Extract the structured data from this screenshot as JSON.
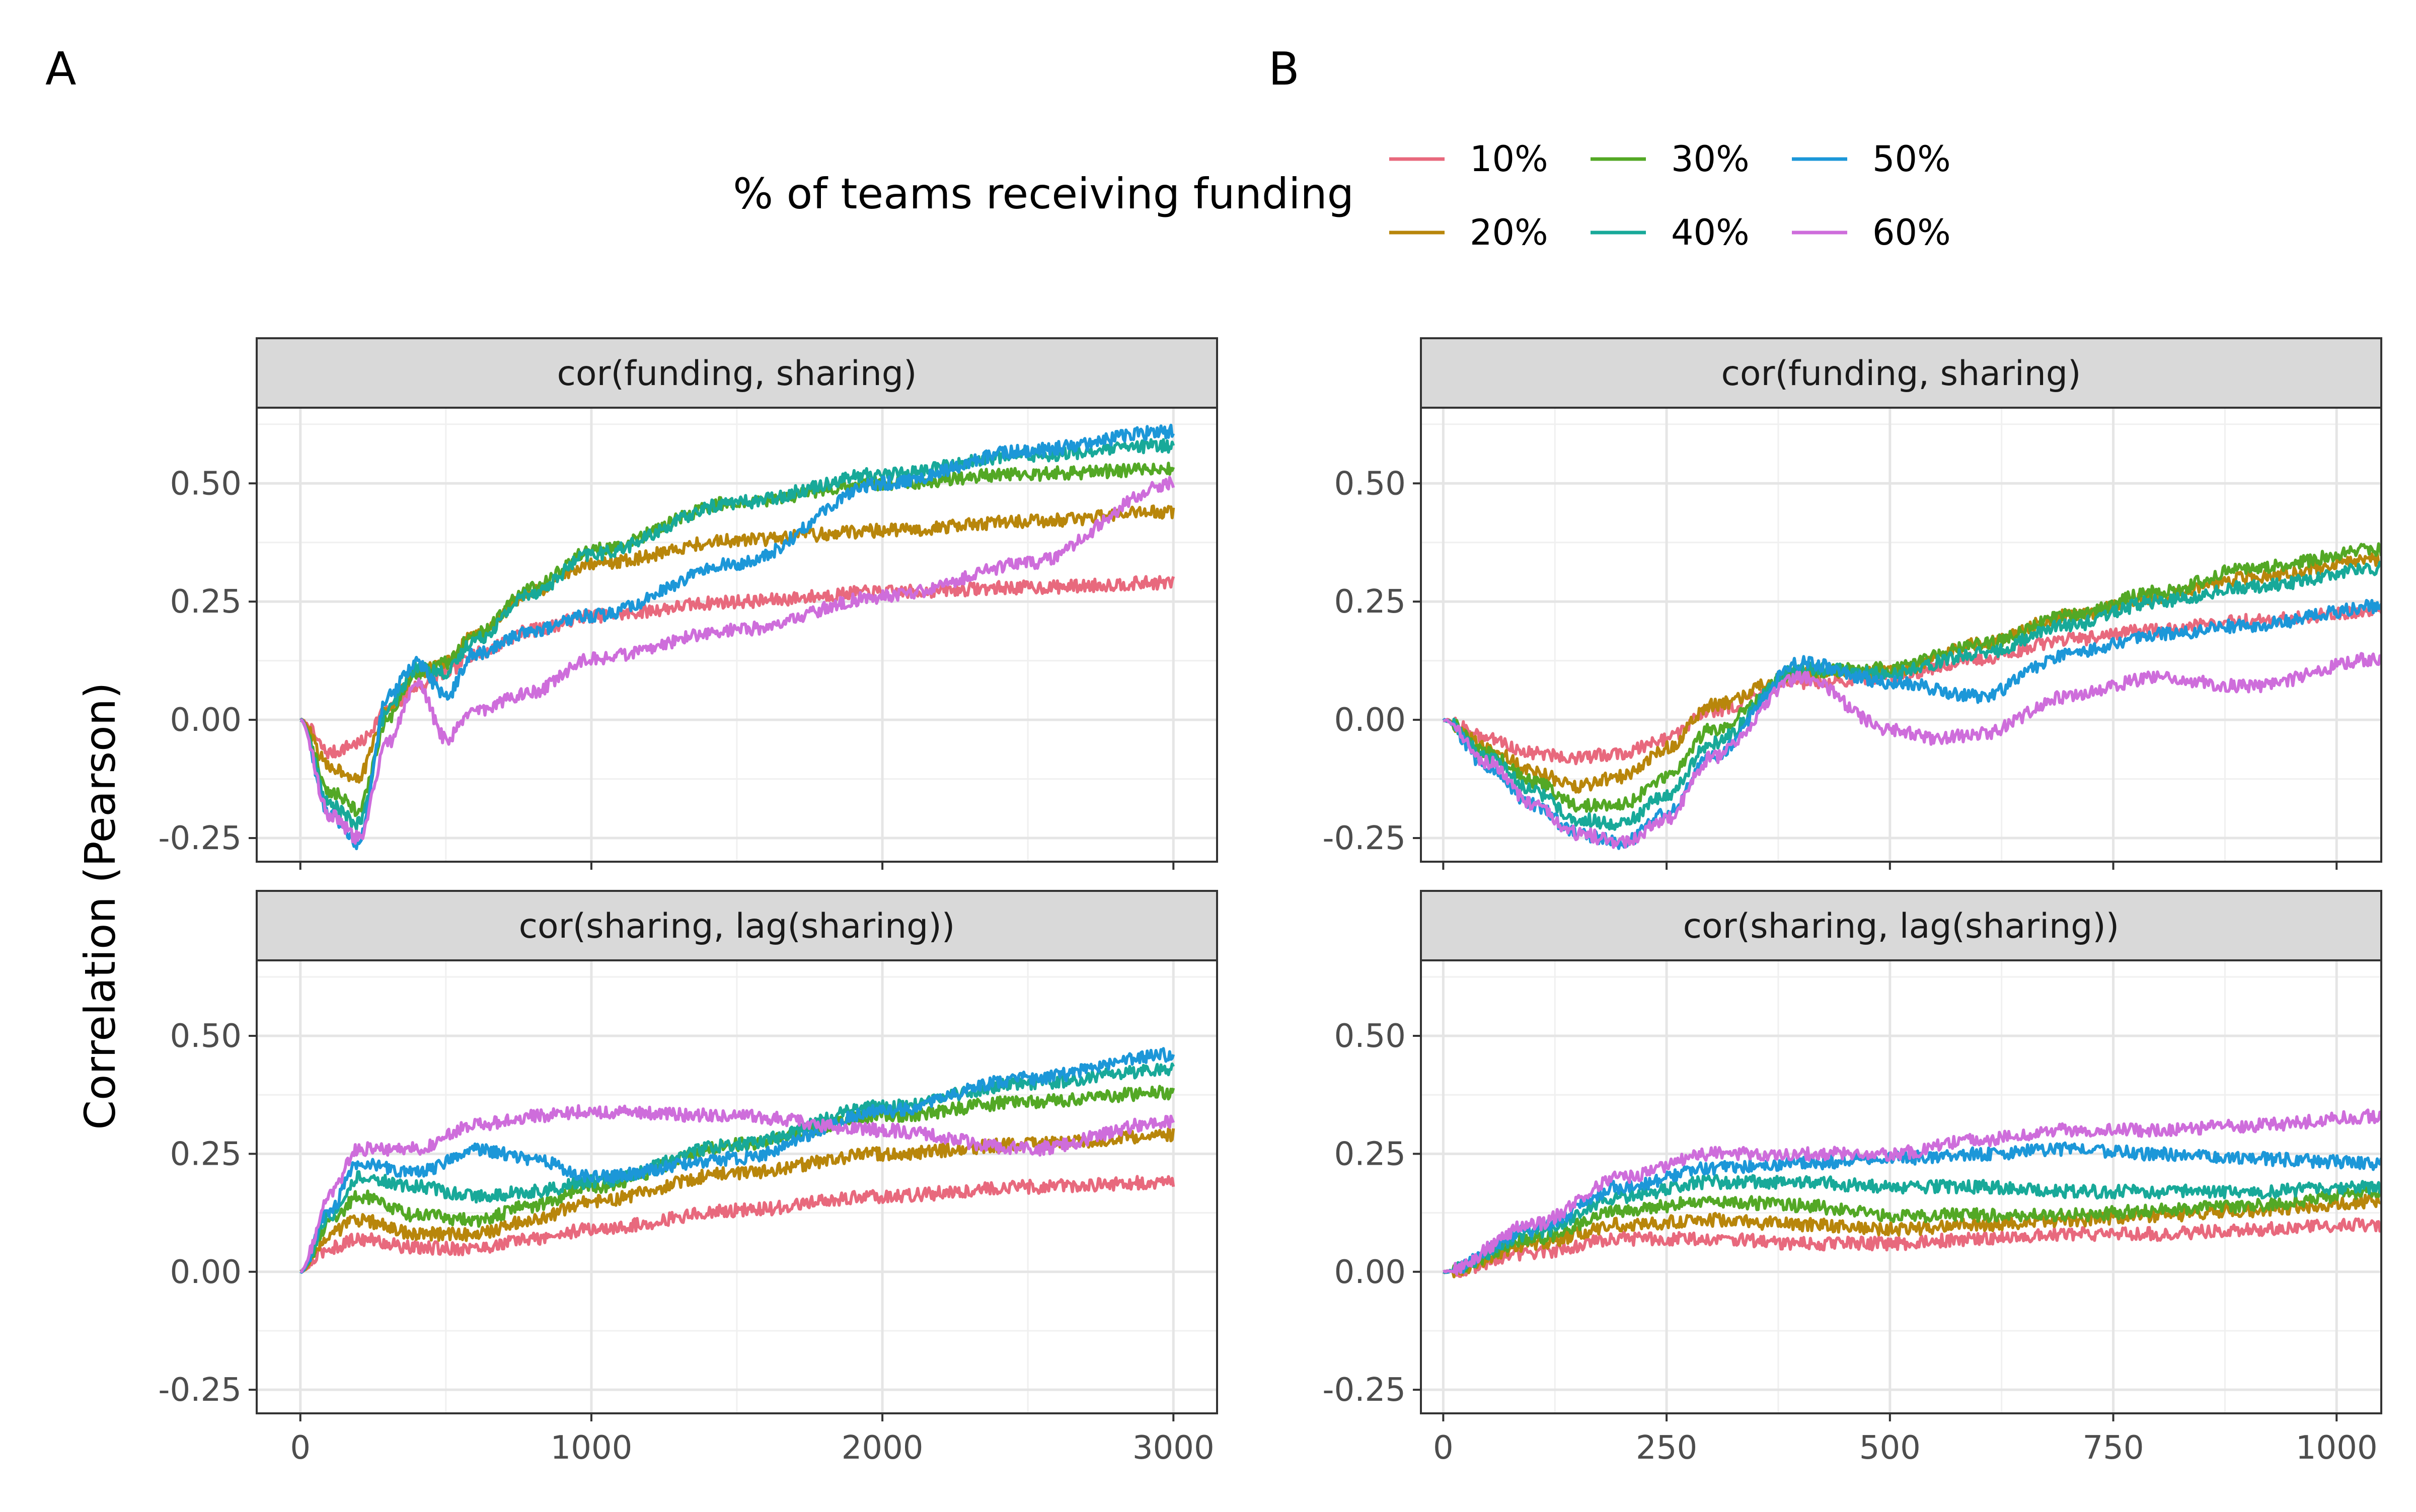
{
  "figure": {
    "ylabel": "Correlation (Pearson)",
    "panel_labels": [
      "A",
      "B"
    ],
    "legend_title": "% of teams receiving funding",
    "series_colors": {
      "10%": "#E8697D",
      "20%": "#B8860B",
      "30%": "#53A825",
      "40%": "#18A999",
      "50%": "#1C97D8",
      "60%": "#CE6DDB"
    },
    "grid": true
  },
  "legend": {
    "title": "% of teams receiving funding",
    "items": [
      {
        "label": "10%",
        "color": "#E8697D"
      },
      {
        "label": "20%",
        "color": "#B8860B"
      },
      {
        "label": "30%",
        "color": "#53A825"
      },
      {
        "label": "40%",
        "color": "#18A999"
      },
      {
        "label": "50%",
        "color": "#1C97D8"
      },
      {
        "label": "60%",
        "color": "#CE6DDB"
      }
    ]
  },
  "chart_data": [
    {
      "type": "line",
      "panel": "A",
      "facet": "cor(funding, sharing)",
      "xlabel": "",
      "ylabel": "Correlation (Pearson)",
      "xlim": [
        -150,
        3150
      ],
      "ylim": [
        -0.3,
        0.66
      ],
      "xticks": [
        0,
        1000,
        2000,
        3000
      ],
      "xticklabels": [
        "0",
        "1000",
        "2000",
        "3000"
      ],
      "yticks": [
        -0.25,
        0,
        0.25,
        0.5
      ],
      "yticklabels": [
        "-0.25",
        "0.00",
        "0.25",
        "0.50"
      ],
      "series": [
        {
          "name": "10%",
          "x": [
            0,
            100,
            200,
            300,
            400,
            500,
            600,
            800,
            1000,
            1500,
            2000,
            2500,
            3000
          ],
          "y": [
            0.0,
            -0.07,
            -0.05,
            0.02,
            0.07,
            0.1,
            0.14,
            0.19,
            0.22,
            0.25,
            0.27,
            0.28,
            0.29
          ]
        },
        {
          "name": "20%",
          "x": [
            0,
            100,
            200,
            300,
            400,
            500,
            600,
            800,
            1000,
            1500,
            2000,
            2500,
            3000
          ],
          "y": [
            0.0,
            -0.1,
            -0.12,
            0.02,
            0.1,
            0.12,
            0.18,
            0.27,
            0.33,
            0.38,
            0.4,
            0.42,
            0.44
          ]
        },
        {
          "name": "30%",
          "x": [
            0,
            100,
            200,
            300,
            400,
            500,
            600,
            800,
            1000,
            1500,
            2000,
            2500,
            3000
          ],
          "y": [
            0.0,
            -0.15,
            -0.19,
            0.0,
            0.1,
            0.12,
            0.18,
            0.28,
            0.36,
            0.46,
            0.5,
            0.52,
            0.53
          ]
        },
        {
          "name": "40%",
          "x": [
            0,
            100,
            200,
            300,
            400,
            500,
            600,
            800,
            1000,
            1500,
            2000,
            2500,
            3000
          ],
          "y": [
            0.0,
            -0.18,
            -0.22,
            0.02,
            0.11,
            0.1,
            0.17,
            0.27,
            0.35,
            0.46,
            0.52,
            0.56,
            0.58
          ]
        },
        {
          "name": "50%",
          "x": [
            0,
            100,
            200,
            300,
            400,
            500,
            600,
            800,
            1000,
            1500,
            2000,
            2500,
            3000
          ],
          "y": [
            0.0,
            -0.2,
            -0.26,
            0.05,
            0.12,
            0.05,
            0.14,
            0.19,
            0.22,
            0.33,
            0.5,
            0.57,
            0.61
          ]
        },
        {
          "name": "60%",
          "x": [
            0,
            100,
            200,
            300,
            400,
            500,
            600,
            800,
            1000,
            1500,
            2000,
            2500,
            3000
          ],
          "y": [
            0.0,
            -0.2,
            -0.25,
            -0.05,
            0.08,
            -0.04,
            0.02,
            0.06,
            0.13,
            0.19,
            0.26,
            0.33,
            0.5
          ]
        }
      ]
    },
    {
      "type": "line",
      "panel": "A",
      "facet": "cor(sharing, lag(sharing))",
      "xlabel": "",
      "ylabel": "Correlation (Pearson)",
      "xlim": [
        -150,
        3150
      ],
      "ylim": [
        -0.3,
        0.66
      ],
      "xticks": [
        0,
        1000,
        2000,
        3000
      ],
      "xticklabels": [
        "0",
        "1000",
        "2000",
        "3000"
      ],
      "yticks": [
        -0.25,
        0,
        0.25,
        0.5
      ],
      "yticklabels": [
        "-0.25",
        "0.00",
        "0.25",
        "0.50"
      ],
      "series": [
        {
          "name": "10%",
          "x": [
            0,
            100,
            200,
            400,
            600,
            800,
            1000,
            1500,
            2000,
            2500,
            3000
          ],
          "y": [
            0.0,
            0.05,
            0.07,
            0.05,
            0.05,
            0.07,
            0.09,
            0.13,
            0.16,
            0.18,
            0.19
          ]
        },
        {
          "name": "20%",
          "x": [
            0,
            100,
            200,
            400,
            600,
            800,
            1000,
            1500,
            2000,
            2500,
            3000
          ],
          "y": [
            0.0,
            0.08,
            0.11,
            0.08,
            0.08,
            0.11,
            0.15,
            0.21,
            0.25,
            0.27,
            0.29
          ]
        },
        {
          "name": "30%",
          "x": [
            0,
            100,
            200,
            400,
            600,
            800,
            1000,
            1500,
            2000,
            2500,
            3000
          ],
          "y": [
            0.0,
            0.1,
            0.16,
            0.12,
            0.11,
            0.14,
            0.18,
            0.27,
            0.33,
            0.36,
            0.38
          ]
        },
        {
          "name": "40%",
          "x": [
            0,
            100,
            200,
            400,
            600,
            800,
            1000,
            1500,
            2000,
            2500,
            3000
          ],
          "y": [
            0.0,
            0.12,
            0.2,
            0.18,
            0.16,
            0.17,
            0.19,
            0.27,
            0.35,
            0.4,
            0.43
          ]
        },
        {
          "name": "50%",
          "x": [
            0,
            100,
            200,
            400,
            600,
            800,
            1000,
            1500,
            2000,
            2500,
            3000
          ],
          "y": [
            0.0,
            0.13,
            0.23,
            0.21,
            0.26,
            0.24,
            0.2,
            0.24,
            0.34,
            0.41,
            0.46
          ]
        },
        {
          "name": "60%",
          "x": [
            0,
            100,
            200,
            400,
            600,
            800,
            1000,
            1500,
            2000,
            2500,
            3000
          ],
          "y": [
            0.0,
            0.16,
            0.26,
            0.26,
            0.31,
            0.33,
            0.34,
            0.33,
            0.3,
            0.26,
            0.32
          ]
        }
      ]
    },
    {
      "type": "line",
      "panel": "B",
      "facet": "cor(funding, sharing)",
      "xlabel": "",
      "ylabel": "Correlation (Pearson)",
      "xlim": [
        -25,
        1050
      ],
      "ylim": [
        -0.3,
        0.66
      ],
      "xticks": [
        0,
        250,
        500,
        750,
        1000
      ],
      "xticklabels": [
        "0",
        "250",
        "500",
        "750",
        "1000"
      ],
      "yticks": [
        -0.25,
        0,
        0.25,
        0.5
      ],
      "yticklabels": [
        "-0.25",
        "0.00",
        "0.25",
        "0.50"
      ],
      "series": [
        {
          "name": "10%",
          "x": [
            0,
            50,
            100,
            150,
            200,
            250,
            300,
            400,
            500,
            600,
            700,
            800,
            900,
            1050
          ],
          "y": [
            0.0,
            -0.04,
            -0.07,
            -0.08,
            -0.07,
            -0.04,
            0.02,
            0.08,
            0.09,
            0.13,
            0.17,
            0.19,
            0.21,
            0.23
          ]
        },
        {
          "name": "20%",
          "x": [
            0,
            50,
            100,
            150,
            200,
            250,
            300,
            400,
            500,
            600,
            700,
            800,
            900,
            1050
          ],
          "y": [
            0.0,
            -0.06,
            -0.11,
            -0.14,
            -0.12,
            -0.06,
            0.03,
            0.1,
            0.1,
            0.16,
            0.22,
            0.26,
            0.3,
            0.34
          ]
        },
        {
          "name": "30%",
          "x": [
            0,
            50,
            100,
            150,
            200,
            250,
            300,
            400,
            500,
            600,
            700,
            800,
            900,
            1050
          ],
          "y": [
            0.0,
            -0.07,
            -0.13,
            -0.18,
            -0.18,
            -0.12,
            -0.02,
            0.1,
            0.11,
            0.16,
            0.22,
            0.27,
            0.32,
            0.36
          ]
        },
        {
          "name": "40%",
          "x": [
            0,
            50,
            100,
            150,
            200,
            250,
            300,
            400,
            500,
            600,
            700,
            800,
            900,
            1050
          ],
          "y": [
            0.0,
            -0.08,
            -0.15,
            -0.21,
            -0.22,
            -0.16,
            -0.05,
            0.11,
            0.1,
            0.14,
            0.2,
            0.25,
            0.28,
            0.32
          ]
        },
        {
          "name": "50%",
          "x": [
            0,
            50,
            100,
            150,
            200,
            250,
            300,
            400,
            500,
            600,
            700,
            800,
            900,
            1050
          ],
          "y": [
            0.0,
            -0.1,
            -0.18,
            -0.24,
            -0.26,
            -0.2,
            -0.08,
            0.12,
            0.08,
            0.05,
            0.14,
            0.18,
            0.2,
            0.24
          ]
        },
        {
          "name": "60%",
          "x": [
            0,
            50,
            100,
            150,
            200,
            250,
            300,
            400,
            500,
            550,
            600,
            700,
            800,
            900,
            1050
          ],
          "y": [
            0.0,
            -0.09,
            -0.18,
            -0.24,
            -0.26,
            -0.21,
            -0.08,
            0.09,
            -0.02,
            -0.04,
            -0.03,
            0.05,
            0.09,
            0.07,
            0.13
          ]
        }
      ]
    },
    {
      "type": "line",
      "panel": "B",
      "facet": "cor(sharing, lag(sharing))",
      "xlabel": "",
      "ylabel": "Correlation (Pearson)",
      "xlim": [
        -25,
        1050
      ],
      "ylim": [
        -0.3,
        0.66
      ],
      "xticks": [
        0,
        250,
        500,
        750,
        1000
      ],
      "xticklabels": [
        "0",
        "250",
        "500",
        "750",
        "1000"
      ],
      "yticks": [
        -0.25,
        0,
        0.25,
        0.5
      ],
      "yticklabels": [
        "-0.25",
        "0.00",
        "0.25",
        "0.50"
      ],
      "series": [
        {
          "name": "10%",
          "x": [
            0,
            100,
            200,
            300,
            400,
            500,
            600,
            700,
            800,
            900,
            1050
          ],
          "y": [
            0.0,
            0.04,
            0.07,
            0.07,
            0.06,
            0.06,
            0.07,
            0.08,
            0.08,
            0.09,
            0.1
          ]
        },
        {
          "name": "20%",
          "x": [
            0,
            100,
            200,
            300,
            400,
            500,
            600,
            700,
            800,
            900,
            1050
          ],
          "y": [
            0.0,
            0.06,
            0.1,
            0.11,
            0.1,
            0.09,
            0.1,
            0.11,
            0.12,
            0.13,
            0.15
          ]
        },
        {
          "name": "30%",
          "x": [
            0,
            100,
            200,
            300,
            400,
            500,
            600,
            700,
            800,
            900,
            1050
          ],
          "y": [
            0.0,
            0.07,
            0.13,
            0.15,
            0.14,
            0.12,
            0.12,
            0.12,
            0.13,
            0.14,
            0.17
          ]
        },
        {
          "name": "40%",
          "x": [
            0,
            100,
            200,
            300,
            400,
            500,
            600,
            700,
            800,
            900,
            1050
          ],
          "y": [
            0.0,
            0.08,
            0.16,
            0.19,
            0.19,
            0.18,
            0.18,
            0.17,
            0.17,
            0.17,
            0.18
          ]
        },
        {
          "name": "50%",
          "x": [
            0,
            100,
            200,
            300,
            400,
            500,
            600,
            700,
            800,
            900,
            1050
          ],
          "y": [
            0.0,
            0.09,
            0.18,
            0.22,
            0.23,
            0.24,
            0.25,
            0.26,
            0.25,
            0.24,
            0.23
          ]
        },
        {
          "name": "60%",
          "x": [
            0,
            100,
            200,
            300,
            400,
            500,
            600,
            700,
            800,
            900,
            1050
          ],
          "y": [
            0.0,
            0.1,
            0.2,
            0.25,
            0.25,
            0.25,
            0.28,
            0.3,
            0.3,
            0.31,
            0.33
          ]
        }
      ]
    }
  ]
}
